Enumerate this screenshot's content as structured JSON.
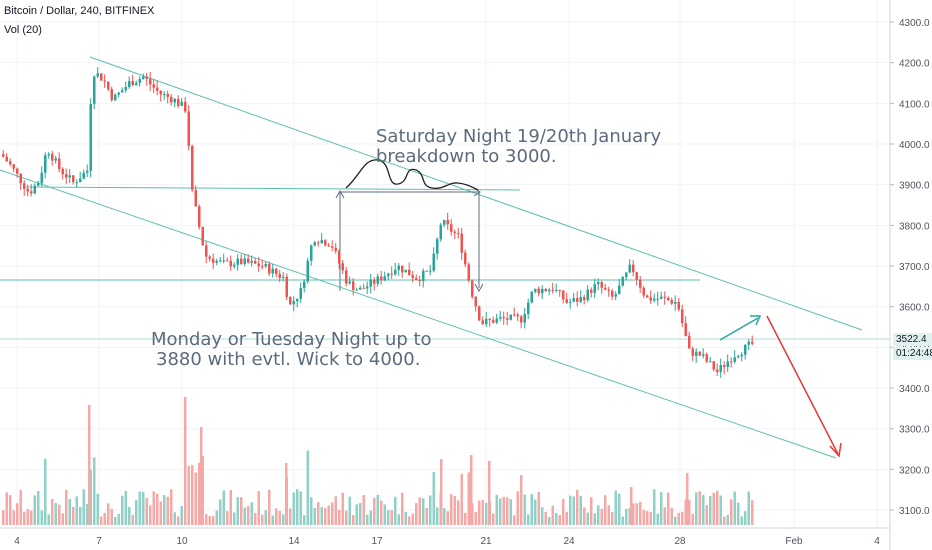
{
  "header": {
    "title": "Bitcoin / Dollar, 240, BITFINEX",
    "indicator": "Vol (20)"
  },
  "annotations": {
    "text1_line1": "Saturday Night 19/20th January",
    "text1_line2": "breakdown to 3000.",
    "text2_line1": "Monday or Tuesday Night up to",
    "text2_line2": "3880 with evtl. Wick to 4000."
  },
  "badges": {
    "last_price": "3522.4",
    "countdown": "01:24:48"
  },
  "colors": {
    "up": "#26a69a",
    "down": "#ef5350",
    "trendline": "#5cbfb1",
    "arrow_up": "#26a69a",
    "arrow_down": "#e53935",
    "vol_up": "#8fd1c7",
    "vol_down": "#f4a9a7",
    "axis_text": "#50535e",
    "grid": "#f0f3fa"
  },
  "chart_data": {
    "type": "candlestick",
    "symbol": "Bitcoin / Dollar",
    "interval": "240",
    "exchange": "BITFINEX",
    "y_axis": {
      "ticks": [
        "4300.0",
        "4200.0",
        "4100.0",
        "4000.0",
        "3900.0",
        "3800.0",
        "3700.0",
        "3600.0",
        "3500.0",
        "3400.0",
        "3300.0",
        "3200.0",
        "3100.0"
      ],
      "range": [
        3070,
        4330
      ]
    },
    "x_axis": {
      "ticks": [
        "4",
        "7",
        "10",
        "14",
        "17",
        "21",
        "24",
        "28",
        "Feb",
        "4"
      ]
    },
    "price_path": [
      {
        "x": 0,
        "price": 3975
      },
      {
        "x": 10,
        "price": 3945
      },
      {
        "x": 28,
        "price": 3880
      },
      {
        "x": 38,
        "price": 3910
      },
      {
        "x": 46,
        "price": 3990
      },
      {
        "x": 58,
        "price": 3940
      },
      {
        "x": 72,
        "price": 3905
      },
      {
        "x": 86,
        "price": 3935
      },
      {
        "x": 91,
        "price": 4180
      },
      {
        "x": 102,
        "price": 4160
      },
      {
        "x": 112,
        "price": 4110
      },
      {
        "x": 128,
        "price": 4150
      },
      {
        "x": 142,
        "price": 4165
      },
      {
        "x": 158,
        "price": 4125
      },
      {
        "x": 172,
        "price": 4110
      },
      {
        "x": 185,
        "price": 4085
      },
      {
        "x": 191,
        "price": 3880
      },
      {
        "x": 204,
        "price": 3725
      },
      {
        "x": 222,
        "price": 3705
      },
      {
        "x": 240,
        "price": 3710
      },
      {
        "x": 262,
        "price": 3700
      },
      {
        "x": 283,
        "price": 3670
      },
      {
        "x": 288,
        "price": 3600
      },
      {
        "x": 300,
        "price": 3640
      },
      {
        "x": 312,
        "price": 3770
      },
      {
        "x": 330,
        "price": 3755
      },
      {
        "x": 346,
        "price": 3660
      },
      {
        "x": 358,
        "price": 3640
      },
      {
        "x": 376,
        "price": 3665
      },
      {
        "x": 396,
        "price": 3700
      },
      {
        "x": 416,
        "price": 3670
      },
      {
        "x": 430,
        "price": 3690
      },
      {
        "x": 440,
        "price": 3810
      },
      {
        "x": 458,
        "price": 3770
      },
      {
        "x": 470,
        "price": 3640
      },
      {
        "x": 480,
        "price": 3560
      },
      {
        "x": 500,
        "price": 3570
      },
      {
        "x": 520,
        "price": 3570
      },
      {
        "x": 532,
        "price": 3640
      },
      {
        "x": 552,
        "price": 3645
      },
      {
        "x": 566,
        "price": 3610
      },
      {
        "x": 580,
        "price": 3620
      },
      {
        "x": 596,
        "price": 3655
      },
      {
        "x": 612,
        "price": 3620
      },
      {
        "x": 630,
        "price": 3700
      },
      {
        "x": 645,
        "price": 3620
      },
      {
        "x": 660,
        "price": 3620
      },
      {
        "x": 676,
        "price": 3610
      },
      {
        "x": 688,
        "price": 3490
      },
      {
        "x": 700,
        "price": 3480
      },
      {
        "x": 716,
        "price": 3440
      },
      {
        "x": 732,
        "price": 3480
      },
      {
        "x": 752,
        "price": 3510
      }
    ],
    "levels": [
      {
        "price": 3890,
        "label": "horizontal level"
      },
      {
        "price": 3668,
        "label": "horizontal level"
      },
      {
        "price": 3522.4,
        "label": "last price"
      }
    ]
  }
}
